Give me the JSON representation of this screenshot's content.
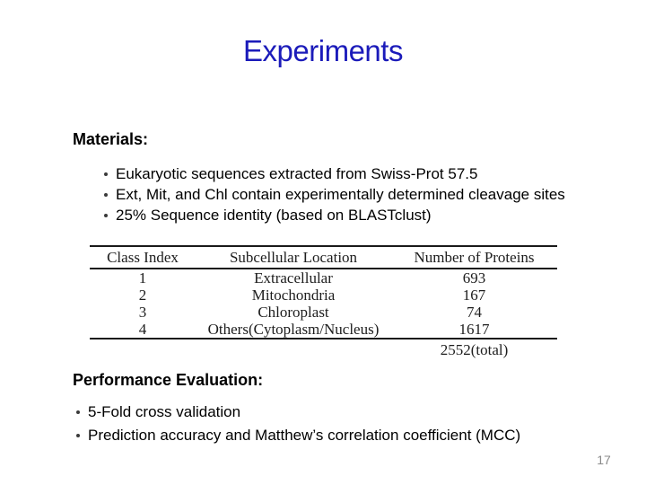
{
  "title": "Experiments",
  "page_number": "17",
  "colors": {
    "title_blue": "#1b1bba",
    "body_text": "#000000",
    "table_text": "#1d1d1d",
    "page_number_gray": "#8a8a8a",
    "background": "#ffffff"
  },
  "materials": {
    "heading": "Materials:",
    "bullets": [
      "Eukaryotic sequences extracted from Swiss-Prot 57.5",
      "Ext, Mit, and Chl contain experimentally determined cleavage sites",
      "25% Sequence identity (based on BLASTclust)"
    ]
  },
  "table": {
    "headers": [
      "Class Index",
      "Subcellular Location",
      "Number of Proteins"
    ],
    "rows": [
      [
        "1",
        "Extracellular",
        "693"
      ],
      [
        "2",
        "Mitochondria",
        "167"
      ],
      [
        "3",
        "Chloroplast",
        "74"
      ],
      [
        "4",
        "Others(Cytoplasm/Nucleus)",
        "1617"
      ]
    ],
    "total": "2552(total)"
  },
  "performance": {
    "heading": "Performance Evaluation:",
    "bullets": [
      "5-Fold cross validation",
      "Prediction accuracy and Matthew’s correlation coefficient (MCC)"
    ]
  }
}
